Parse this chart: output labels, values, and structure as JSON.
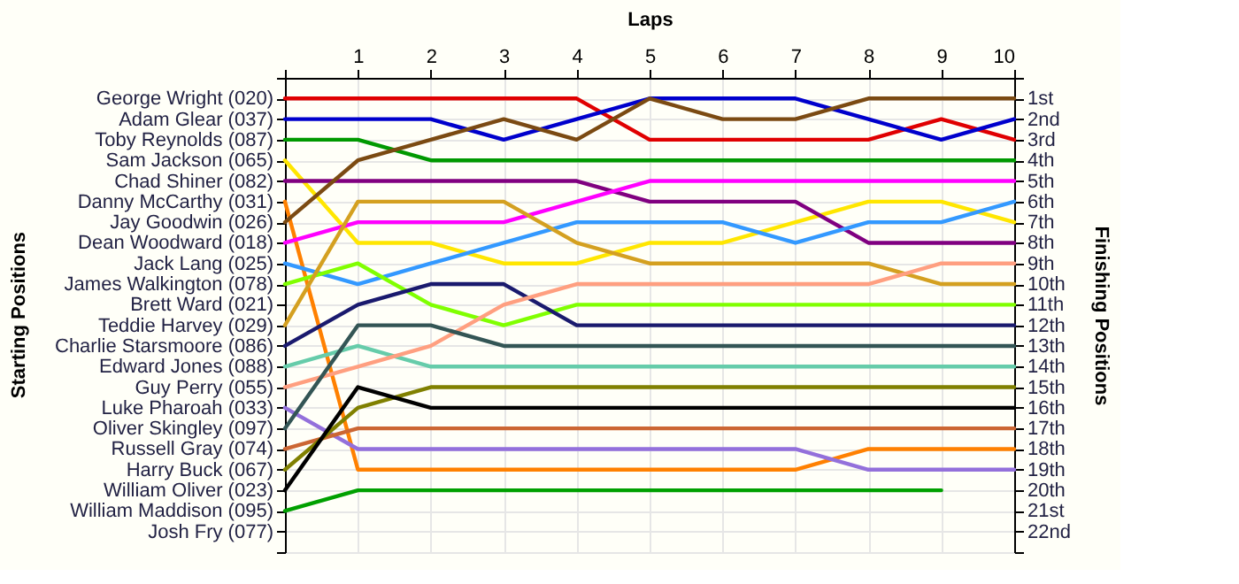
{
  "chart_data": {
    "type": "line",
    "xlabel": "Laps",
    "y2label": "Finishing Positions",
    "annotations": [
      "Starting Positions"
    ],
    "x": [
      0,
      1,
      2,
      3,
      4,
      5,
      6,
      7,
      8,
      9,
      10
    ],
    "xlim": [
      0,
      10
    ],
    "xticks": [
      {
        "value": 0,
        "label": null
      },
      1,
      2,
      3,
      4,
      5,
      6,
      7,
      8,
      9,
      10
    ],
    "y_categories": [
      "George Wright (020)",
      "Adam Glear (037)",
      "Toby Reynolds (087)",
      "Sam Jackson (065)",
      "Chad Shiner (082)",
      "Danny McCarthy (031)",
      "Jay Goodwin (026)",
      "Dean Woodward (018)",
      "Jack Lang (025)",
      "James Walkington (078)",
      "Brett Ward (021)",
      "Teddie Harvey (029)",
      "Charlie Starsmoore (086)",
      "Edward Jones (088)",
      "Guy Perry (055)",
      "Luke Pharoah (033)",
      "Oliver Skingley (097)",
      "Russell Gray (074)",
      "Harry Buck (067)",
      "William Oliver (023)",
      "William Maddison (095)",
      "Josh Fry (077)"
    ],
    "y2lim": [
      23,
      0
    ],
    "y2ticks": [
      {
        "value": 0,
        "label": null
      },
      {
        "value": 1,
        "label": "1st"
      },
      {
        "value": 2,
        "label": "2nd"
      },
      {
        "value": 3,
        "label": "3rd"
      },
      {
        "value": 4,
        "label": "4th"
      },
      {
        "value": 5,
        "label": "5th"
      },
      {
        "value": 6,
        "label": "6th"
      },
      {
        "value": 7,
        "label": "7th"
      },
      {
        "value": 8,
        "label": "8th"
      },
      {
        "value": 9,
        "label": "9th"
      },
      {
        "value": 10,
        "label": "10th"
      },
      {
        "value": 11,
        "label": "11th"
      },
      {
        "value": 12,
        "label": "12th"
      },
      {
        "value": 13,
        "label": "13th"
      },
      {
        "value": 14,
        "label": "14th"
      },
      {
        "value": 15,
        "label": "15th"
      },
      {
        "value": 16,
        "label": "16th"
      },
      {
        "value": 17,
        "label": "17th"
      },
      {
        "value": 18,
        "label": "18th"
      },
      {
        "value": 19,
        "label": "19th"
      },
      {
        "value": 20,
        "label": "20th"
      },
      {
        "value": 21,
        "label": "21st"
      },
      {
        "value": 22,
        "label": "22nd"
      },
      {
        "value": 23,
        "label": null
      }
    ],
    "grid": true,
    "legend": false,
    "marker": "none",
    "line_style": "solid",
    "series": [
      {
        "axis": "y2",
        "color": "#e00000",
        "values": [
          1,
          1,
          1,
          1,
          1,
          3,
          3,
          3,
          3,
          2,
          3
        ]
      },
      {
        "axis": "y2",
        "color": "#0000cc",
        "values": [
          2,
          2,
          2,
          3,
          2,
          1,
          1,
          1,
          2,
          3,
          2
        ]
      },
      {
        "axis": "y2",
        "color": "#009900",
        "values": [
          3,
          3,
          4,
          4,
          4,
          4,
          4,
          4,
          4,
          4,
          4
        ]
      },
      {
        "axis": "y2",
        "color": "#ffe600",
        "values": [
          4,
          8,
          8,
          9,
          9,
          8,
          8,
          7,
          6,
          6,
          7
        ]
      },
      {
        "axis": "y2",
        "color": "#800080",
        "values": [
          5,
          5,
          5,
          5,
          5,
          6,
          6,
          6,
          8,
          8,
          8
        ]
      },
      {
        "axis": "y2",
        "color": "#ff8000",
        "values": [
          6,
          19,
          19,
          19,
          19,
          19,
          19,
          19,
          18,
          18,
          18
        ]
      },
      {
        "axis": "y2",
        "color": "#7b4a12",
        "values": [
          7,
          4,
          3,
          2,
          3,
          1,
          2,
          2,
          1,
          1,
          1
        ]
      },
      {
        "axis": "y2",
        "color": "#ff00ff",
        "values": [
          8,
          7,
          7,
          7,
          6,
          5,
          5,
          5,
          5,
          5,
          5
        ]
      },
      {
        "axis": "y2",
        "color": "#3399ff",
        "values": [
          9,
          10,
          9,
          8,
          7,
          7,
          7,
          8,
          7,
          7,
          6
        ]
      },
      {
        "axis": "y2",
        "color": "#80ff00",
        "values": [
          10,
          9,
          11,
          12,
          11,
          11,
          11,
          11,
          11,
          11,
          11
        ]
      },
      {
        "axis": "y2",
        "color": "#d4a020",
        "values": [
          12,
          6,
          6,
          6,
          8,
          9,
          9,
          9,
          9,
          10,
          10
        ]
      },
      {
        "axis": "y2",
        "color": "#1a1a6e",
        "values": [
          13,
          11,
          10,
          10,
          12,
          12,
          12,
          12,
          12,
          12,
          12
        ]
      },
      {
        "axis": "y2",
        "color": "#66ccaa",
        "values": [
          14,
          13,
          14,
          14,
          14,
          14,
          14,
          14,
          14,
          14,
          14
        ]
      },
      {
        "axis": "y2",
        "color": "#ff9f80",
        "values": [
          15,
          14,
          13,
          11,
          10,
          10,
          10,
          10,
          10,
          9,
          9
        ]
      },
      {
        "axis": "y2",
        "color": "#9370db",
        "values": [
          16,
          18,
          18,
          18,
          18,
          18,
          18,
          18,
          19,
          19,
          19
        ]
      },
      {
        "axis": "y2",
        "color": "#335555",
        "values": [
          17,
          12,
          12,
          13,
          13,
          13,
          13,
          13,
          13,
          13,
          13
        ]
      },
      {
        "axis": "y2",
        "color": "#cc6633",
        "values": [
          18,
          17,
          17,
          17,
          17,
          17,
          17,
          17,
          17,
          17,
          17
        ]
      },
      {
        "axis": "y2",
        "color": "#808000",
        "values": [
          19,
          16,
          15,
          15,
          15,
          15,
          15,
          15,
          15,
          15,
          15
        ]
      },
      {
        "axis": "y2",
        "color": "#000000",
        "values": [
          20,
          15,
          16,
          16,
          16,
          16,
          16,
          16,
          16,
          16,
          16
        ]
      },
      {
        "axis": "y2",
        "color": "#00a000",
        "values": [
          21,
          20,
          20,
          20,
          20,
          20,
          20,
          20,
          20,
          20,
          null
        ]
      }
    ]
  }
}
